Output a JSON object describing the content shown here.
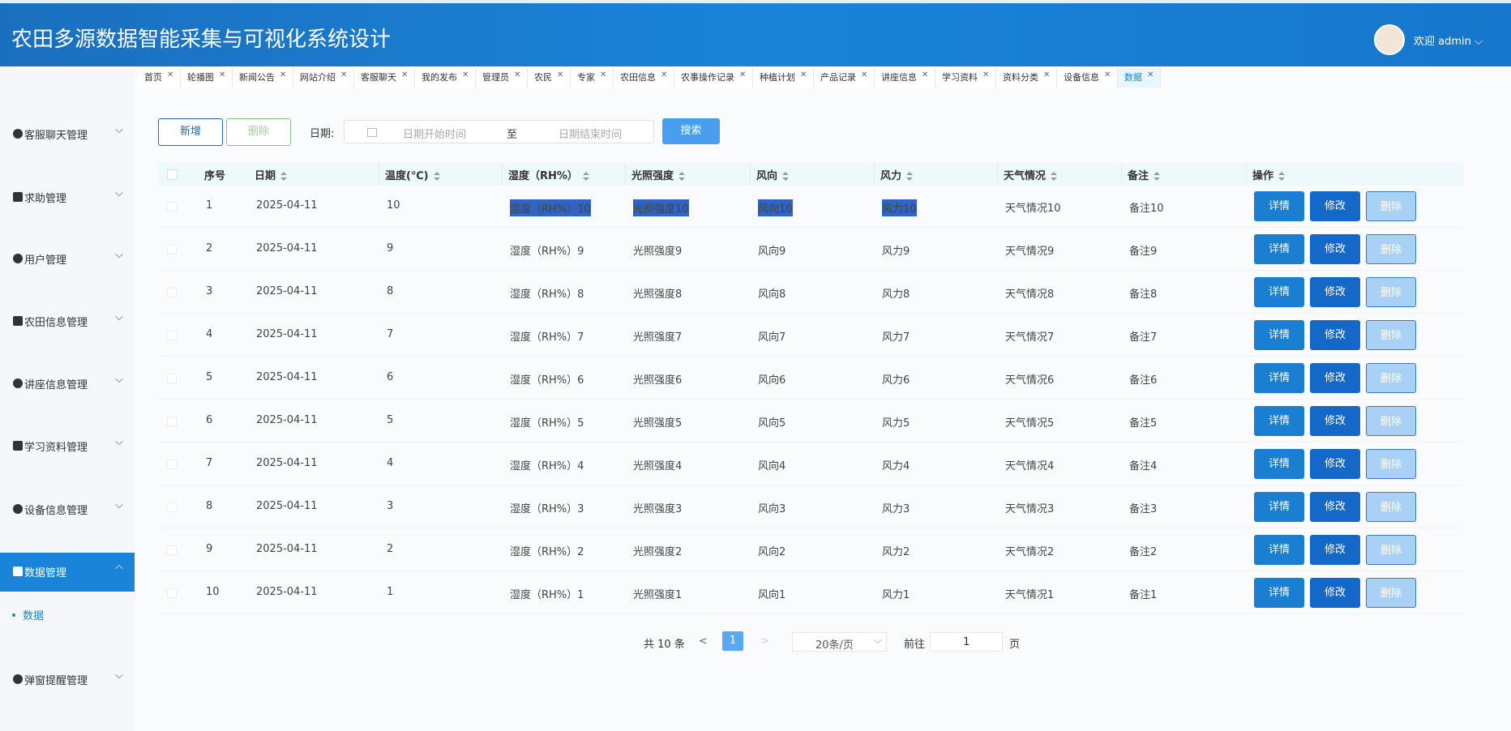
{
  "header": {
    "title": "农田多源数据智能采集与可视化系统设计",
    "user": "欢迎 admin"
  },
  "tabs": [
    "首页",
    "轮播图",
    "新闻公告",
    "网站介绍",
    "客服聊天",
    "我的发布",
    "管理员",
    "农民",
    "专家",
    "农田信息",
    "农事操作记录",
    "种植计划",
    "产品记录",
    "讲座信息",
    "学习资料",
    "资料分类",
    "设备信息",
    "数据"
  ],
  "sidebar": {
    "items": [
      "客服聊天管理",
      "求助管理",
      "用户管理",
      "农田信息管理",
      "讲座信息管理",
      "学习资料管理",
      "设备信息管理",
      "数据管理",
      "弹窗提醒管理"
    ],
    "active_sub": "数据"
  },
  "toolbar": {
    "add": "新增",
    "delete": "删除",
    "date_label": "日期:",
    "start_placeholder": "日期开始时间",
    "separator": "至",
    "end_placeholder": "日期结束时间",
    "search": "搜索"
  },
  "table": {
    "headers": [
      "序号",
      "日期",
      "温度(℃)",
      "湿度（RH%）",
      "光照强度",
      "风向",
      "风力",
      "天气情况",
      "备注",
      "操作"
    ],
    "rows": [
      [
        "1",
        "2025-04-11",
        "10",
        "湿度（RH%）10",
        "光照强度10",
        "风向10",
        "风力10",
        "天气情况10",
        "备注10"
      ],
      [
        "2",
        "2025-04-11",
        "9",
        "湿度（RH%）9",
        "光照强度9",
        "风向9",
        "风力9",
        "天气情况9",
        "备注9"
      ],
      [
        "3",
        "2025-04-11",
        "8",
        "湿度（RH%）8",
        "光照强度8",
        "风向8",
        "风力8",
        "天气情况8",
        "备注8"
      ],
      [
        "4",
        "2025-04-11",
        "7",
        "湿度（RH%）7",
        "光照强度7",
        "风向7",
        "风力7",
        "天气情况7",
        "备注7"
      ],
      [
        "5",
        "2025-04-11",
        "6",
        "湿度（RH%）6",
        "光照强度6",
        "风向6",
        "风力6",
        "天气情况6",
        "备注6"
      ],
      [
        "6",
        "2025-04-11",
        "5",
        "湿度（RH%）5",
        "光照强度5",
        "风向5",
        "风力5",
        "天气情况5",
        "备注5"
      ],
      [
        "7",
        "2025-04-11",
        "4",
        "湿度（RH%）4",
        "光照强度4",
        "风向4",
        "风力4",
        "天气情况4",
        "备注4"
      ],
      [
        "8",
        "2025-04-11",
        "3",
        "湿度（RH%）3",
        "光照强度3",
        "风向3",
        "风力3",
        "天气情况3",
        "备注3"
      ],
      [
        "9",
        "2025-04-11",
        "2",
        "湿度（RH%）2",
        "光照强度2",
        "风向2",
        "风力2",
        "天气情况2",
        "备注2"
      ],
      [
        "10",
        "2025-04-11",
        "1",
        "湿度（RH%）1",
        "光照强度1",
        "风向1",
        "风力1",
        "天气情况1",
        "备注1"
      ]
    ],
    "actions": [
      "详情",
      "修改",
      "删除"
    ]
  },
  "pagination": {
    "total": "共 10 条",
    "prev": "<",
    "page": "1",
    "next": ">",
    "page_size": "20条/页",
    "goto": "前往",
    "goto_value": "1",
    "page_unit": "页"
  }
}
